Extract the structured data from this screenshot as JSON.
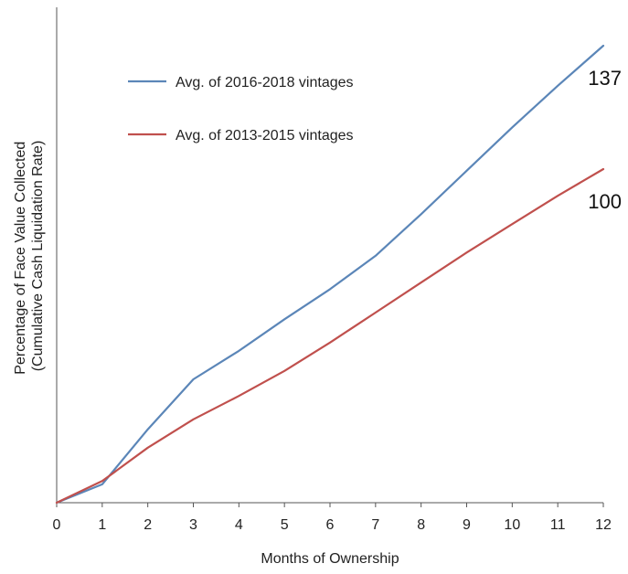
{
  "chart_data": {
    "type": "line",
    "title": "",
    "xlabel": "Months of Ownership",
    "ylabel_line1": "Percentage of Face Value Collected",
    "ylabel_line2": "(Cumulative Cash Liquidation Rate)",
    "x": [
      0,
      1,
      2,
      3,
      4,
      5,
      6,
      7,
      8,
      9,
      10,
      11,
      12
    ],
    "x_tick_labels": [
      "0",
      "1",
      "2",
      "3",
      "4",
      "5",
      "6",
      "7",
      "8",
      "9",
      "10",
      "11",
      "12"
    ],
    "xlim": [
      0,
      12
    ],
    "ylim": [
      0,
      140
    ],
    "y_ticks_shown": false,
    "grid": false,
    "legend_position": "top-left",
    "series": [
      {
        "name": "Avg. of 2016-2018 vintages",
        "color": "#5b86b8",
        "values": [
          0,
          5.5,
          22,
          37,
          45.5,
          55,
          64,
          74,
          86.5,
          99.5,
          112.5,
          125,
          137
        ],
        "end_label": "137"
      },
      {
        "name": "Avg. of 2013-2015 vintages",
        "color": "#c0504d",
        "values": [
          0,
          6.5,
          16.5,
          25,
          32,
          39.5,
          48,
          57,
          66,
          75,
          83.5,
          92,
          100
        ],
        "end_label": "100"
      }
    ]
  }
}
